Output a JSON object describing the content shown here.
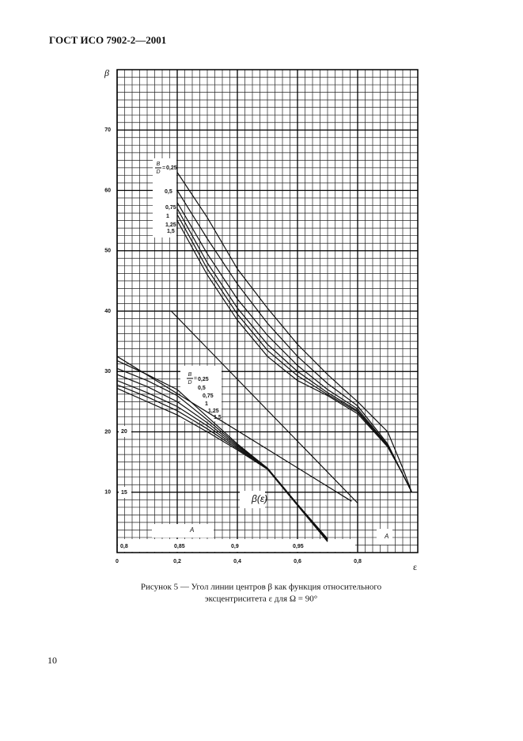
{
  "header": "ГОСТ ИСО 7902-2—2001",
  "caption": [
    "Рисунок 5 — Угол линии центров β как функция относительного",
    "эксцентриситета ε для Ω = 90°"
  ],
  "page_number": "10",
  "chart_data": {
    "type": "line",
    "x_label": "ε",
    "y_label": "β",
    "grid": true,
    "xlim": [
      0,
      1.0
    ],
    "ylim": [
      0,
      80
    ],
    "xticks": [
      {
        "value": 0,
        "label": "0"
      },
      {
        "value": 0.2,
        "label": "0,2"
      },
      {
        "value": 0.4,
        "label": "0,4"
      },
      {
        "value": 0.6,
        "label": "0,6"
      },
      {
        "value": 0.8,
        "label": "0,8"
      }
    ],
    "yticks": [
      10,
      20,
      30,
      40,
      50,
      60,
      70
    ],
    "legend_fraction": {
      "numerator": "B",
      "denominator": "D",
      "sign": "="
    },
    "series": [
      {
        "name": "0,25",
        "color": "#111",
        "x": [
          0.2,
          0.3,
          0.4,
          0.5,
          0.6,
          0.7,
          0.8,
          0.9,
          0.95,
          0.98
        ],
        "values": [
          63,
          55.5,
          47,
          40.5,
          34.5,
          29.5,
          25,
          20,
          14,
          10
        ]
      },
      {
        "name": "0,5",
        "color": "#111",
        "x": [
          0.2,
          0.3,
          0.4,
          0.5,
          0.6,
          0.7,
          0.8,
          0.9,
          0.95,
          0.98
        ],
        "values": [
          60,
          52,
          44.5,
          38,
          32.5,
          28,
          24.3,
          18,
          13,
          10
        ]
      },
      {
        "name": "0,75",
        "color": "#111",
        "x": [
          0.2,
          0.3,
          0.4,
          0.5,
          0.6,
          0.7,
          0.8,
          0.9,
          0.95,
          0.98
        ],
        "values": [
          58,
          49.5,
          42,
          36,
          31,
          27,
          23.8,
          17.8,
          13,
          10
        ]
      },
      {
        "name": "1",
        "color": "#111",
        "x": [
          0.2,
          0.3,
          0.4,
          0.5,
          0.6,
          0.7,
          0.8,
          0.9,
          0.95,
          0.98
        ],
        "values": [
          57,
          48,
          40.5,
          34.5,
          30,
          26.5,
          23.5,
          17.7,
          13,
          10
        ]
      },
      {
        "name": "1,25",
        "color": "#111",
        "x": [
          0.2,
          0.3,
          0.4,
          0.5,
          0.6,
          0.7,
          0.8,
          0.9,
          0.95,
          0.98
        ],
        "values": [
          56,
          47,
          39.5,
          33.5,
          29.3,
          26.2,
          23.3,
          17.6,
          13,
          10
        ]
      },
      {
        "name": "1,5",
        "color": "#111",
        "x": [
          0.2,
          0.3,
          0.4,
          0.5,
          0.6,
          0.7,
          0.8,
          0.9,
          0.95,
          0.98
        ],
        "values": [
          55,
          46,
          38.5,
          32.5,
          28.5,
          26,
          23,
          17.5,
          13,
          10
        ]
      },
      {
        "name": "0,25",
        "color": "#111",
        "x": [
          0,
          0.1,
          0.2,
          0.3,
          0.4,
          0.5,
          0.6,
          0.7
        ],
        "values": [
          31.8,
          29.5,
          27,
          22.5,
          18,
          14,
          8,
          2.3
        ]
      },
      {
        "name": "0,5",
        "color": "#111",
        "x": [
          0,
          0.1,
          0.2,
          0.3,
          0.4,
          0.5,
          0.6,
          0.7
        ],
        "values": [
          30.5,
          28.5,
          26,
          22,
          17.8,
          14,
          8,
          2.2
        ]
      },
      {
        "name": "0,75",
        "color": "#111",
        "x": [
          0,
          0.1,
          0.2,
          0.3,
          0.4,
          0.5,
          0.6,
          0.7
        ],
        "values": [
          29.5,
          27.5,
          25,
          21.5,
          17.6,
          14,
          8,
          2.1
        ]
      },
      {
        "name": "1",
        "color": "#111",
        "x": [
          0,
          0.1,
          0.2,
          0.3,
          0.4,
          0.5,
          0.6,
          0.7
        ],
        "values": [
          28.5,
          26.5,
          24.2,
          21,
          17.4,
          13.9,
          7.9,
          2
        ]
      },
      {
        "name": "1,25",
        "color": "#111",
        "x": [
          0,
          0.1,
          0.2,
          0.3,
          0.4,
          0.5,
          0.6,
          0.7
        ],
        "values": [
          27.8,
          25.8,
          23.5,
          20.5,
          17.2,
          13.9,
          7.9,
          1.9
        ]
      },
      {
        "name": "1,5",
        "color": "#111",
        "x": [
          0,
          0.1,
          0.2,
          0.3,
          0.4,
          0.5,
          0.6,
          0.7
        ],
        "values": [
          27.2,
          25,
          22.8,
          20,
          17,
          13.8,
          7.8,
          1.8
        ]
      },
      {
        "color": "#111",
        "x": [
          0,
          0.18,
          0.8,
          0.8
        ],
        "values": [
          40,
          40,
          8.2,
          0
        ]
      },
      {
        "color": "#111",
        "x": [
          0,
          0.78
        ],
        "values": [
          32.5,
          8.5
        ]
      }
    ],
    "annotations": [
      "20",
      "15",
      "0,8",
      "0,85",
      "0,9",
      "0,95",
      "A",
      "A",
      "β(ε)"
    ]
  }
}
